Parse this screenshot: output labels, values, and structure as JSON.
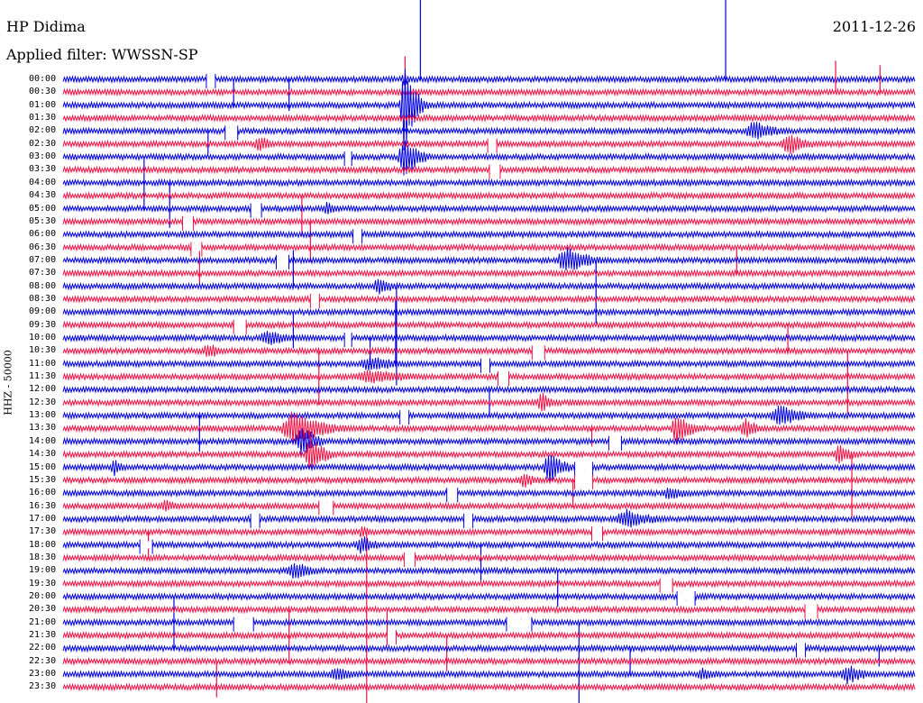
{
  "header": {
    "station": "HP Didima",
    "filter": "Applied filter: WWSSN-SP",
    "date": "2011-12-26",
    "channel": "HHZ - 50000"
  },
  "time_labels": [
    "00:00",
    "00:30",
    "01:00",
    "01:30",
    "02:00",
    "02:30",
    "03:00",
    "03:30",
    "04:00",
    "04:30",
    "05:00",
    "05:30",
    "06:00",
    "06:30",
    "07:00",
    "07:30",
    "08:00",
    "08:30",
    "09:00",
    "09:30",
    "10:00",
    "10:30",
    "11:00",
    "11:30",
    "12:00",
    "12:30",
    "13:00",
    "13:30",
    "14:00",
    "14:30",
    "15:00",
    "15:30",
    "16:00",
    "16:30",
    "17:00",
    "17:30",
    "18:00",
    "18:30",
    "19:00",
    "19:30",
    "20:00",
    "20:30",
    "21:00",
    "21:30",
    "22:00",
    "22:30",
    "23:00",
    "23:30"
  ],
  "colors": {
    "even_trace": "#0000dd",
    "odd_trace": "#ee1144",
    "background": "#ffffff",
    "text": "#000000"
  },
  "events": [
    {
      "row": 0,
      "pos": 0.4,
      "amp": 8,
      "dur": 0.02
    },
    {
      "row": 2,
      "pos": 0.4,
      "amp": 60,
      "dur": 0.02
    },
    {
      "row": 4,
      "pos": 0.81,
      "amp": 12,
      "dur": 0.05
    },
    {
      "row": 5,
      "pos": 0.23,
      "amp": 10,
      "dur": 0.03
    },
    {
      "row": 5,
      "pos": 0.85,
      "amp": 14,
      "dur": 0.04
    },
    {
      "row": 6,
      "pos": 0.4,
      "amp": 25,
      "dur": 0.03
    },
    {
      "row": 10,
      "pos": 0.31,
      "amp": 8,
      "dur": 0.03
    },
    {
      "row": 14,
      "pos": 0.59,
      "amp": 16,
      "dur": 0.05
    },
    {
      "row": 16,
      "pos": 0.37,
      "amp": 12,
      "dur": 0.03
    },
    {
      "row": 20,
      "pos": 0.24,
      "amp": 10,
      "dur": 0.05
    },
    {
      "row": 21,
      "pos": 0.17,
      "amp": 10,
      "dur": 0.03
    },
    {
      "row": 22,
      "pos": 0.36,
      "amp": 10,
      "dur": 0.06
    },
    {
      "row": 23,
      "pos": 0.36,
      "amp": 8,
      "dur": 0.12
    },
    {
      "row": 25,
      "pos": 0.56,
      "amp": 14,
      "dur": 0.02
    },
    {
      "row": 26,
      "pos": 0.84,
      "amp": 14,
      "dur": 0.05
    },
    {
      "row": 27,
      "pos": 0.27,
      "amp": 22,
      "dur": 0.06
    },
    {
      "row": 27,
      "pos": 0.72,
      "amp": 20,
      "dur": 0.03
    },
    {
      "row": 27,
      "pos": 0.8,
      "amp": 12,
      "dur": 0.03
    },
    {
      "row": 28,
      "pos": 0.28,
      "amp": 20,
      "dur": 0.03
    },
    {
      "row": 29,
      "pos": 0.29,
      "amp": 22,
      "dur": 0.03
    },
    {
      "row": 29,
      "pos": 0.91,
      "amp": 12,
      "dur": 0.03
    },
    {
      "row": 30,
      "pos": 0.57,
      "amp": 20,
      "dur": 0.03
    },
    {
      "row": 30,
      "pos": 0.06,
      "amp": 10,
      "dur": 0.02
    },
    {
      "row": 31,
      "pos": 0.54,
      "amp": 10,
      "dur": 0.03
    },
    {
      "row": 32,
      "pos": 0.71,
      "amp": 8,
      "dur": 0.05
    },
    {
      "row": 33,
      "pos": 0.12,
      "amp": 8,
      "dur": 0.03
    },
    {
      "row": 34,
      "pos": 0.66,
      "amp": 12,
      "dur": 0.06
    },
    {
      "row": 35,
      "pos": 0.35,
      "amp": 8,
      "dur": 0.02
    },
    {
      "row": 36,
      "pos": 0.35,
      "amp": 12,
      "dur": 0.03
    },
    {
      "row": 38,
      "pos": 0.27,
      "amp": 12,
      "dur": 0.04
    },
    {
      "row": 46,
      "pos": 0.32,
      "amp": 8,
      "dur": 0.05
    },
    {
      "row": 46,
      "pos": 0.75,
      "amp": 8,
      "dur": 0.04
    },
    {
      "row": 46,
      "pos": 0.92,
      "amp": 12,
      "dur": 0.04
    }
  ],
  "spikes": [
    {
      "row": 0,
      "pos": 0.419,
      "dir": -1,
      "len": 90
    },
    {
      "row": 0,
      "pos": 0.777,
      "dir": -1,
      "len": 90
    },
    {
      "row": 1,
      "pos": 0.401,
      "dir": -1,
      "len": 40
    },
    {
      "row": 1,
      "pos": 0.906,
      "dir": -1,
      "len": 35
    },
    {
      "row": 1,
      "pos": 0.958,
      "dir": -1,
      "len": 30
    },
    {
      "row": 0,
      "pos": 0.2,
      "dir": 1,
      "len": 30
    },
    {
      "row": 0,
      "pos": 0.265,
      "dir": 1,
      "len": 35
    },
    {
      "row": 4,
      "pos": 0.17,
      "dir": 1,
      "len": 25
    },
    {
      "row": 6,
      "pos": 0.095,
      "dir": 1,
      "len": 60
    },
    {
      "row": 8,
      "pos": 0.125,
      "dir": 1,
      "len": 50
    },
    {
      "row": 9,
      "pos": 0.28,
      "dir": 1,
      "len": 45
    },
    {
      "row": 11,
      "pos": 0.29,
      "dir": 1,
      "len": 45
    },
    {
      "row": 13,
      "pos": 0.16,
      "dir": 1,
      "len": 40
    },
    {
      "row": 16,
      "pos": 0.27,
      "dir": -1,
      "len": 40
    },
    {
      "row": 14,
      "pos": 0.625,
      "dir": 1,
      "len": 70
    },
    {
      "row": 16,
      "pos": 0.391,
      "dir": 1,
      "len": 110
    },
    {
      "row": 18,
      "pos": 0.27,
      "dir": 1,
      "len": 40
    },
    {
      "row": 13,
      "pos": 0.79,
      "dir": 1,
      "len": 30
    },
    {
      "row": 21,
      "pos": 0.3,
      "dir": 1,
      "len": 60
    },
    {
      "row": 20,
      "pos": 0.36,
      "dir": 1,
      "len": 30
    },
    {
      "row": 21,
      "pos": 0.85,
      "dir": -1,
      "len": 30
    },
    {
      "row": 21,
      "pos": 0.92,
      "dir": 1,
      "len": 70
    },
    {
      "row": 22,
      "pos": 0.39,
      "dir": -1,
      "len": 70
    },
    {
      "row": 24,
      "pos": 0.5,
      "dir": 1,
      "len": 30
    },
    {
      "row": 26,
      "pos": 0.16,
      "dir": 1,
      "len": 40
    },
    {
      "row": 27,
      "pos": 0.62,
      "dir": 1,
      "len": 20
    },
    {
      "row": 29,
      "pos": 0.925,
      "dir": 1,
      "len": 70
    },
    {
      "row": 31,
      "pos": 0.598,
      "dir": 1,
      "len": 30
    },
    {
      "row": 35,
      "pos": 0.356,
      "dir": 1,
      "len": 250
    },
    {
      "row": 35,
      "pos": 0.1,
      "dir": 1,
      "len": 30
    },
    {
      "row": 36,
      "pos": 0.49,
      "dir": 1,
      "len": 40
    },
    {
      "row": 38,
      "pos": 0.58,
      "dir": 1,
      "len": 40
    },
    {
      "row": 40,
      "pos": 0.13,
      "dir": 1,
      "len": 60
    },
    {
      "row": 41,
      "pos": 0.265,
      "dir": 1,
      "len": 60
    },
    {
      "row": 41,
      "pos": 0.38,
      "dir": 1,
      "len": 40
    },
    {
      "row": 42,
      "pos": 0.605,
      "dir": 1,
      "len": 90
    },
    {
      "row": 43,
      "pos": 0.45,
      "dir": 1,
      "len": 40
    },
    {
      "row": 44,
      "pos": 0.665,
      "dir": 1,
      "len": 30
    },
    {
      "row": 45,
      "pos": 0.18,
      "dir": 1,
      "len": 40
    },
    {
      "row": 44,
      "pos": 0.957,
      "dir": 1,
      "len": 20
    }
  ],
  "gaps": [
    {
      "row": 0,
      "pos": 0.168,
      "w": 10
    },
    {
      "row": 4,
      "pos": 0.19,
      "w": 14
    },
    {
      "row": 5,
      "pos": 0.498,
      "w": 10
    },
    {
      "row": 6,
      "pos": 0.33,
      "w": 8
    },
    {
      "row": 7,
      "pos": 0.5,
      "w": 12
    },
    {
      "row": 10,
      "pos": 0.22,
      "w": 12
    },
    {
      "row": 11,
      "pos": 0.14,
      "w": 12
    },
    {
      "row": 12,
      "pos": 0.34,
      "w": 10
    },
    {
      "row": 13,
      "pos": 0.15,
      "w": 12
    },
    {
      "row": 14,
      "pos": 0.25,
      "w": 14
    },
    {
      "row": 17,
      "pos": 0.29,
      "w": 10
    },
    {
      "row": 19,
      "pos": 0.2,
      "w": 14
    },
    {
      "row": 20,
      "pos": 0.33,
      "w": 8
    },
    {
      "row": 21,
      "pos": 0.55,
      "w": 14
    },
    {
      "row": 22,
      "pos": 0.49,
      "w": 10
    },
    {
      "row": 23,
      "pos": 0.51,
      "w": 12
    },
    {
      "row": 26,
      "pos": 0.395,
      "w": 10
    },
    {
      "row": 28,
      "pos": 0.64,
      "w": 14
    },
    {
      "row": 30,
      "pos": 0.6,
      "w": 20
    },
    {
      "row": 31,
      "pos": 0.6,
      "w": 20
    },
    {
      "row": 32,
      "pos": 0.45,
      "w": 12
    },
    {
      "row": 33,
      "pos": 0.3,
      "w": 16
    },
    {
      "row": 34,
      "pos": 0.47,
      "w": 10
    },
    {
      "row": 34,
      "pos": 0.22,
      "w": 10
    },
    {
      "row": 35,
      "pos": 0.62,
      "w": 12
    },
    {
      "row": 36,
      "pos": 0.09,
      "w": 14
    },
    {
      "row": 37,
      "pos": 0.4,
      "w": 12
    },
    {
      "row": 39,
      "pos": 0.7,
      "w": 14
    },
    {
      "row": 40,
      "pos": 0.72,
      "w": 20
    },
    {
      "row": 41,
      "pos": 0.87,
      "w": 14
    },
    {
      "row": 42,
      "pos": 0.2,
      "w": 22
    },
    {
      "row": 42,
      "pos": 0.52,
      "w": 28
    },
    {
      "row": 43,
      "pos": 0.38,
      "w": 10
    },
    {
      "row": 44,
      "pos": 0.86,
      "w": 10
    }
  ]
}
